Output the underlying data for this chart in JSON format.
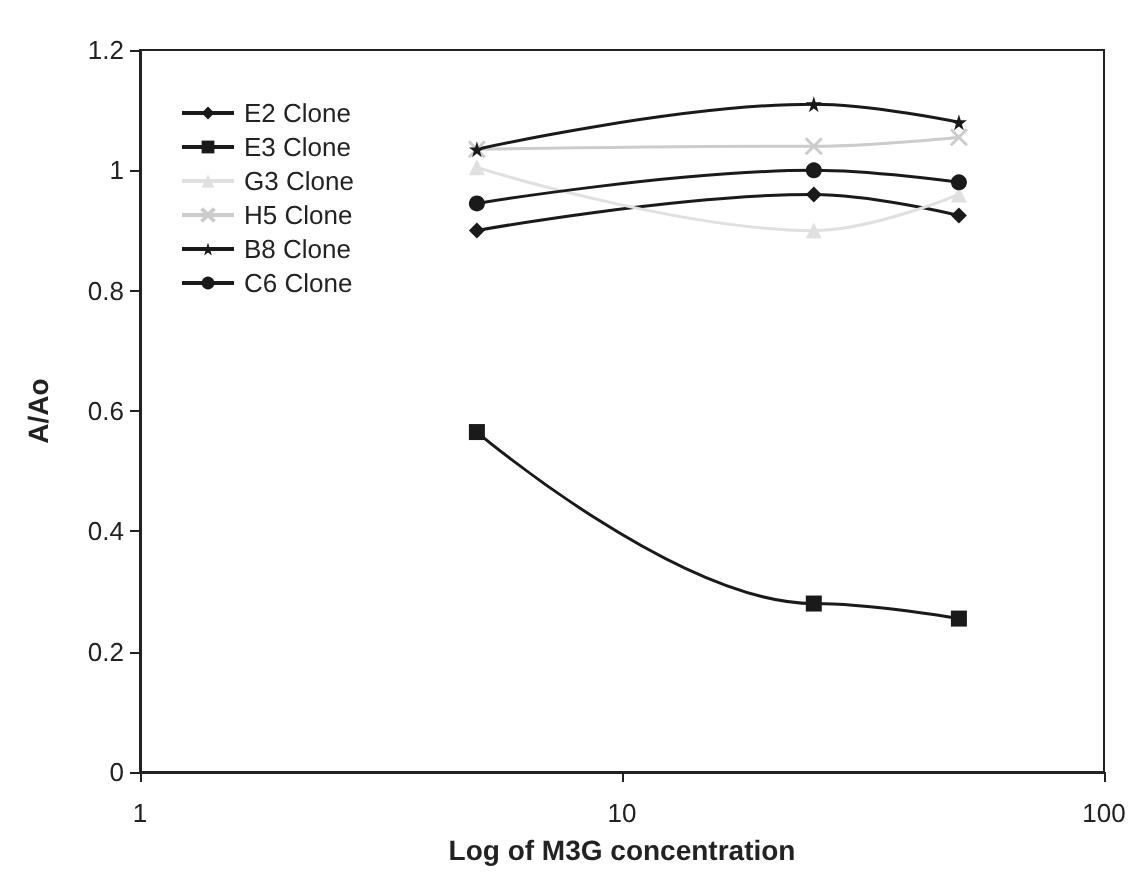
{
  "chart_data": {
    "type": "line",
    "xlabel": "Log of M3G concentration",
    "ylabel": "A/Ao",
    "log": "x",
    "xlim": [
      1,
      100
    ],
    "xticks": [
      1,
      10,
      100
    ],
    "ylim": [
      0,
      1.2
    ],
    "yticks": [
      0,
      0.2,
      0.4,
      0.6,
      0.8,
      1,
      1.2
    ],
    "x": [
      5,
      25,
      50
    ],
    "grid": false,
    "legend": "top left",
    "series": [
      {
        "name": "E2 Clone",
        "color": "#1a1a1a",
        "marker": "diamond",
        "values": [
          0.9,
          0.96,
          0.925
        ]
      },
      {
        "name": "E3 Clone",
        "color": "#1a1a1a",
        "marker": "square",
        "values": [
          0.565,
          0.28,
          0.255
        ]
      },
      {
        "name": "G3 Clone",
        "color": "#e0e0e0",
        "marker": "triangle",
        "values": [
          1.005,
          0.9,
          0.96
        ]
      },
      {
        "name": "H5 Clone",
        "color": "#cccccc",
        "marker": "cross",
        "values": [
          1.035,
          1.04,
          1.055
        ]
      },
      {
        "name": "B8 Clone",
        "color": "#1a1a1a",
        "marker": "star",
        "values": [
          1.035,
          1.11,
          1.08
        ]
      },
      {
        "name": "C6 Clone",
        "color": "#1a1a1a",
        "marker": "circle",
        "values": [
          0.945,
          1.0,
          0.98
        ]
      }
    ]
  }
}
